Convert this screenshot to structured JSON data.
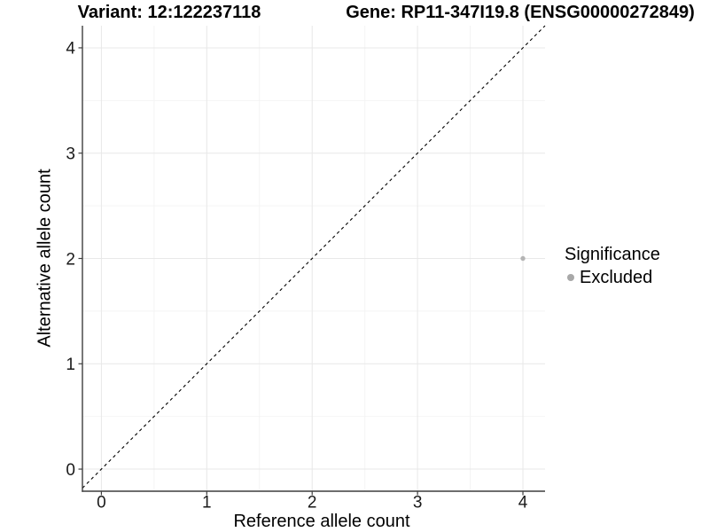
{
  "chart_data": {
    "type": "scatter",
    "title_left": "Variant: 12:122237118",
    "title_right": "Gene: RP11-347I19.8 (ENSG00000272849)",
    "xlabel": "Reference allele count",
    "ylabel": "Alternative allele count",
    "xlim": [
      -0.18,
      4.21
    ],
    "ylim": [
      -0.21,
      4.21
    ],
    "xticks": [
      0,
      1,
      2,
      3,
      4
    ],
    "yticks": [
      0,
      1,
      2,
      3,
      4
    ],
    "minor_ticks": [
      0.5,
      1.5,
      2.5,
      3.5
    ],
    "grid": true,
    "identity_line": {
      "equation": "y = x",
      "style": "dashed",
      "color": "#000000"
    },
    "series": [
      {
        "name": "Excluded",
        "color": "#b4b4b4",
        "points": [
          {
            "x": 4,
            "y": 2
          }
        ]
      }
    ],
    "legend": {
      "title": "Significance",
      "position": "right",
      "items": [
        {
          "label": "Excluded",
          "color": "#a8a8a8"
        }
      ]
    },
    "colors": {
      "grid_major": "#e8e8e8",
      "grid_minor": "#f4f4f4",
      "axis": "#3f3f3f",
      "tick_label": "#1a1a1a"
    }
  }
}
